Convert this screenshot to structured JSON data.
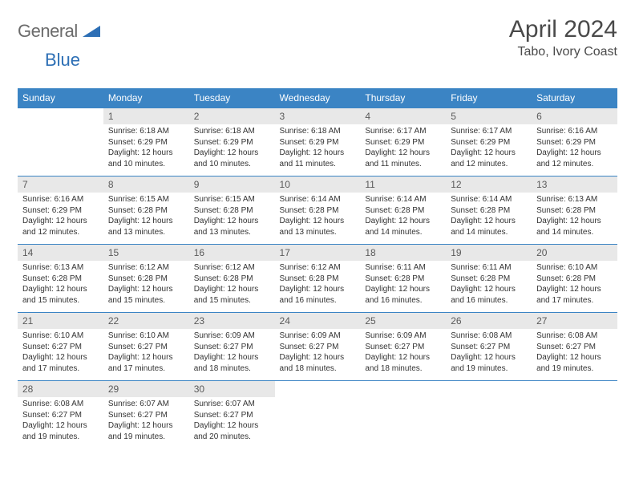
{
  "brand": {
    "part1": "General",
    "part2": "Blue"
  },
  "title": "April 2024",
  "location": "Tabo, Ivory Coast",
  "colors": {
    "header_bg": "#3b84c4",
    "header_text": "#ffffff",
    "daynum_bg": "#e8e8e8",
    "daynum_text": "#5a5a5a",
    "body_text": "#333333",
    "brand_gray": "#6b6b6b",
    "brand_blue": "#2d6fb5"
  },
  "weekdays": [
    "Sunday",
    "Monday",
    "Tuesday",
    "Wednesday",
    "Thursday",
    "Friday",
    "Saturday"
  ],
  "weeks": [
    {
      "nums": [
        "",
        "1",
        "2",
        "3",
        "4",
        "5",
        "6"
      ],
      "info": [
        "",
        "Sunrise: 6:18 AM\nSunset: 6:29 PM\nDaylight: 12 hours and 10 minutes.",
        "Sunrise: 6:18 AM\nSunset: 6:29 PM\nDaylight: 12 hours and 10 minutes.",
        "Sunrise: 6:18 AM\nSunset: 6:29 PM\nDaylight: 12 hours and 11 minutes.",
        "Sunrise: 6:17 AM\nSunset: 6:29 PM\nDaylight: 12 hours and 11 minutes.",
        "Sunrise: 6:17 AM\nSunset: 6:29 PM\nDaylight: 12 hours and 12 minutes.",
        "Sunrise: 6:16 AM\nSunset: 6:29 PM\nDaylight: 12 hours and 12 minutes."
      ]
    },
    {
      "nums": [
        "7",
        "8",
        "9",
        "10",
        "11",
        "12",
        "13"
      ],
      "info": [
        "Sunrise: 6:16 AM\nSunset: 6:29 PM\nDaylight: 12 hours and 12 minutes.",
        "Sunrise: 6:15 AM\nSunset: 6:28 PM\nDaylight: 12 hours and 13 minutes.",
        "Sunrise: 6:15 AM\nSunset: 6:28 PM\nDaylight: 12 hours and 13 minutes.",
        "Sunrise: 6:14 AM\nSunset: 6:28 PM\nDaylight: 12 hours and 13 minutes.",
        "Sunrise: 6:14 AM\nSunset: 6:28 PM\nDaylight: 12 hours and 14 minutes.",
        "Sunrise: 6:14 AM\nSunset: 6:28 PM\nDaylight: 12 hours and 14 minutes.",
        "Sunrise: 6:13 AM\nSunset: 6:28 PM\nDaylight: 12 hours and 14 minutes."
      ]
    },
    {
      "nums": [
        "14",
        "15",
        "16",
        "17",
        "18",
        "19",
        "20"
      ],
      "info": [
        "Sunrise: 6:13 AM\nSunset: 6:28 PM\nDaylight: 12 hours and 15 minutes.",
        "Sunrise: 6:12 AM\nSunset: 6:28 PM\nDaylight: 12 hours and 15 minutes.",
        "Sunrise: 6:12 AM\nSunset: 6:28 PM\nDaylight: 12 hours and 15 minutes.",
        "Sunrise: 6:12 AM\nSunset: 6:28 PM\nDaylight: 12 hours and 16 minutes.",
        "Sunrise: 6:11 AM\nSunset: 6:28 PM\nDaylight: 12 hours and 16 minutes.",
        "Sunrise: 6:11 AM\nSunset: 6:28 PM\nDaylight: 12 hours and 16 minutes.",
        "Sunrise: 6:10 AM\nSunset: 6:28 PM\nDaylight: 12 hours and 17 minutes."
      ]
    },
    {
      "nums": [
        "21",
        "22",
        "23",
        "24",
        "25",
        "26",
        "27"
      ],
      "info": [
        "Sunrise: 6:10 AM\nSunset: 6:27 PM\nDaylight: 12 hours and 17 minutes.",
        "Sunrise: 6:10 AM\nSunset: 6:27 PM\nDaylight: 12 hours and 17 minutes.",
        "Sunrise: 6:09 AM\nSunset: 6:27 PM\nDaylight: 12 hours and 18 minutes.",
        "Sunrise: 6:09 AM\nSunset: 6:27 PM\nDaylight: 12 hours and 18 minutes.",
        "Sunrise: 6:09 AM\nSunset: 6:27 PM\nDaylight: 12 hours and 18 minutes.",
        "Sunrise: 6:08 AM\nSunset: 6:27 PM\nDaylight: 12 hours and 19 minutes.",
        "Sunrise: 6:08 AM\nSunset: 6:27 PM\nDaylight: 12 hours and 19 minutes."
      ]
    },
    {
      "nums": [
        "28",
        "29",
        "30",
        "",
        "",
        "",
        ""
      ],
      "info": [
        "Sunrise: 6:08 AM\nSunset: 6:27 PM\nDaylight: 12 hours and 19 minutes.",
        "Sunrise: 6:07 AM\nSunset: 6:27 PM\nDaylight: 12 hours and 19 minutes.",
        "Sunrise: 6:07 AM\nSunset: 6:27 PM\nDaylight: 12 hours and 20 minutes.",
        "",
        "",
        "",
        ""
      ]
    }
  ]
}
